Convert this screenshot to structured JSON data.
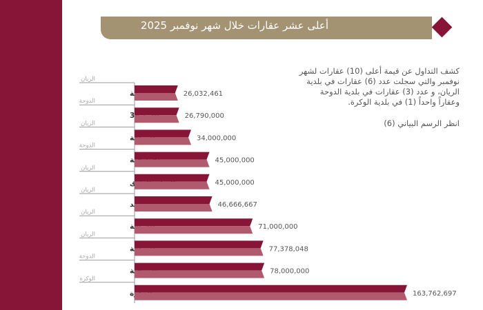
{
  "header": {
    "title": "أعلى عشر عقارات خلال شهر نوفمبر 2025"
  },
  "description": "كشف التداول عن قيمة أعلى (10) عقارات لشهر نوفمبر والتي سجلت عدد (6) عقارات في بلدية الريان، و عدد (3) عقارات في بلدية الدوحة وعقاراً واحداً (1) في بلدية الوكرة.",
  "note": "انظر الرسم البياني (6)",
  "colors": {
    "brand": "#861538",
    "bar_light": "#b25a6d",
    "header": "#a39373"
  },
  "chart_data": {
    "type": "bar",
    "orientation": "horizontal",
    "categories": [
      "الغرافة",
      "السد 38",
      "الغرافة",
      "لقطيفية",
      "الريان العتيق",
      "عين خالد",
      "الغرافة",
      "الغرافة",
      "المرخية",
      "الوكرة"
    ],
    "municipalities": [
      "الريان",
      "الدوحة",
      "الريان",
      "الدوحة",
      "الريان",
      "الريان",
      "الريان",
      "الريان",
      "الدوحة",
      "الوكرة"
    ],
    "values": [
      26032461,
      26790000,
      34000000,
      45000000,
      45000000,
      46666667,
      71000000,
      77378048,
      78000000,
      163762697
    ],
    "value_labels": [
      "26,032,461",
      "26,790,000",
      "34,000,000",
      "45,000,000",
      "45,000,000",
      "46,666,667",
      "71,000,000",
      "77,378,048",
      "78,000,000",
      "163,762,697"
    ]
  }
}
